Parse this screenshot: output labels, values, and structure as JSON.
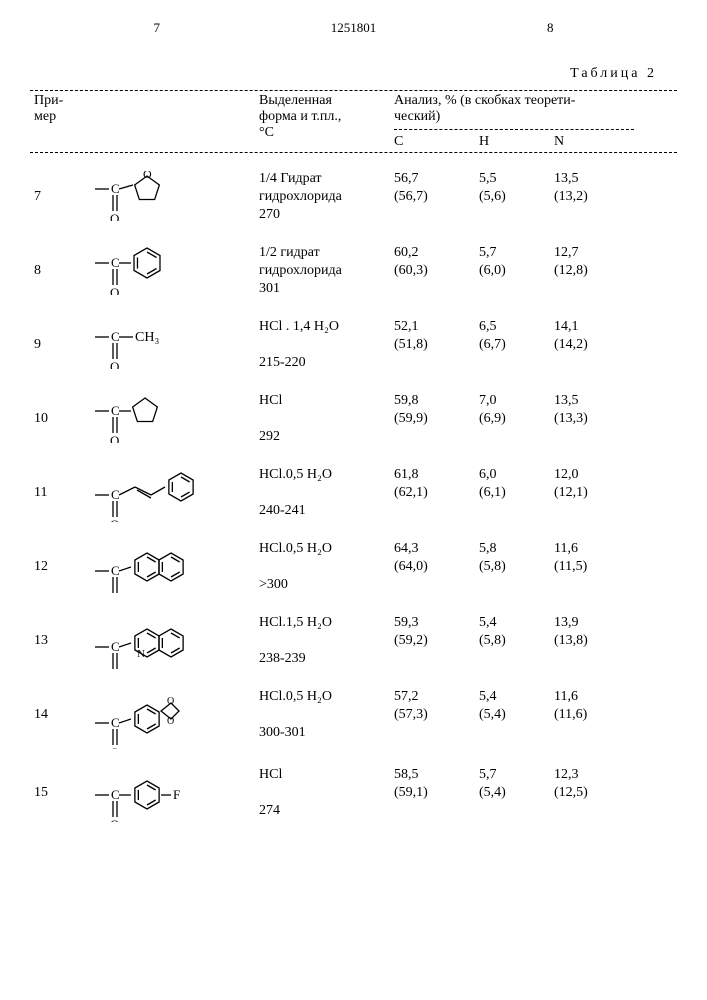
{
  "page_left": "7",
  "doc_num": "1251801",
  "page_right": "8",
  "table_caption": "Таблица 2",
  "header": {
    "col_example": "При-\nмер",
    "col_form": "Выделенная\nформа и т.пл.,\n°С",
    "col_analysis": "Анализ, % (в скобках теорети-\nческий)",
    "sub_c": "С",
    "sub_h": "Н",
    "sub_n": "N"
  },
  "rows": [
    {
      "ex": "7",
      "struct_type": "furanyl-co",
      "form": [
        "1/4 Гидрат",
        "гидрохлорида",
        "270"
      ],
      "c": [
        "56,7",
        "(56,7)"
      ],
      "h": [
        "5,5",
        "(5,6)"
      ],
      "n": [
        "13,5",
        "(13,2)"
      ]
    },
    {
      "ex": "8",
      "struct_type": "phenyl-co",
      "form": [
        "1/2 гидрат",
        "гидрохлорида",
        "301"
      ],
      "c": [
        "60,2",
        "(60,3)"
      ],
      "h": [
        "5,7",
        "(6,0)"
      ],
      "n": [
        "12,7",
        "(12,8)"
      ]
    },
    {
      "ex": "9",
      "struct_type": "methyl-co",
      "form": [
        "HCl . 1,4 H₂O",
        "",
        "215-220"
      ],
      "c": [
        "52,1",
        "(51,8)"
      ],
      "h": [
        "6,5",
        "(6,7)"
      ],
      "n": [
        "14,1",
        "(14,2)"
      ]
    },
    {
      "ex": "10",
      "struct_type": "cyclopentyl-co",
      "form": [
        "HCl",
        "",
        "292"
      ],
      "c": [
        "59,8",
        "(59,9)"
      ],
      "h": [
        "7,0",
        "(6,9)"
      ],
      "n": [
        "13,5",
        "(13,3)"
      ]
    },
    {
      "ex": "11",
      "struct_type": "cinnamoyl-co",
      "form": [
        "HCl.0,5 H₂O",
        "",
        "240-241"
      ],
      "c": [
        "61,8",
        "(62,1)"
      ],
      "h": [
        "6,0",
        "(6,1)"
      ],
      "n": [
        "12,0",
        "(12,1)"
      ]
    },
    {
      "ex": "12",
      "struct_type": "naphthyl-co",
      "form": [
        "HCl.0,5 H₂O",
        "",
        ">300"
      ],
      "c": [
        "64,3",
        "(64,0)"
      ],
      "h": [
        "5,8",
        "(5,8)"
      ],
      "n": [
        "11,6",
        "(11,5)"
      ]
    },
    {
      "ex": "13",
      "struct_type": "quinolinyl-co",
      "form": [
        "HCl.1,5 H₂O",
        "",
        "238-239"
      ],
      "c": [
        "59,3",
        "(59,2)"
      ],
      "h": [
        "5,4",
        "(5,8)"
      ],
      "n": [
        "13,9",
        "(13,8)"
      ]
    },
    {
      "ex": "14",
      "struct_type": "piperonyl-co",
      "form": [
        "HCl.0,5 H₂O",
        "",
        "300-301"
      ],
      "c": [
        "57,2",
        "(57,3)"
      ],
      "h": [
        "5,4",
        "(5,4)"
      ],
      "n": [
        "11,6",
        "(11,6)"
      ]
    },
    {
      "ex": "15",
      "struct_type": "fluorophenyl-co",
      "form": [
        "HCl",
        "",
        "274"
      ],
      "c": [
        "58,5",
        "(59,1)"
      ],
      "h": [
        "5,7",
        "(5,4)"
      ],
      "n": [
        "12,3",
        "(12,5)"
      ]
    }
  ],
  "svg": {
    "stroke": "#000000",
    "stroke_width": 1.3
  }
}
